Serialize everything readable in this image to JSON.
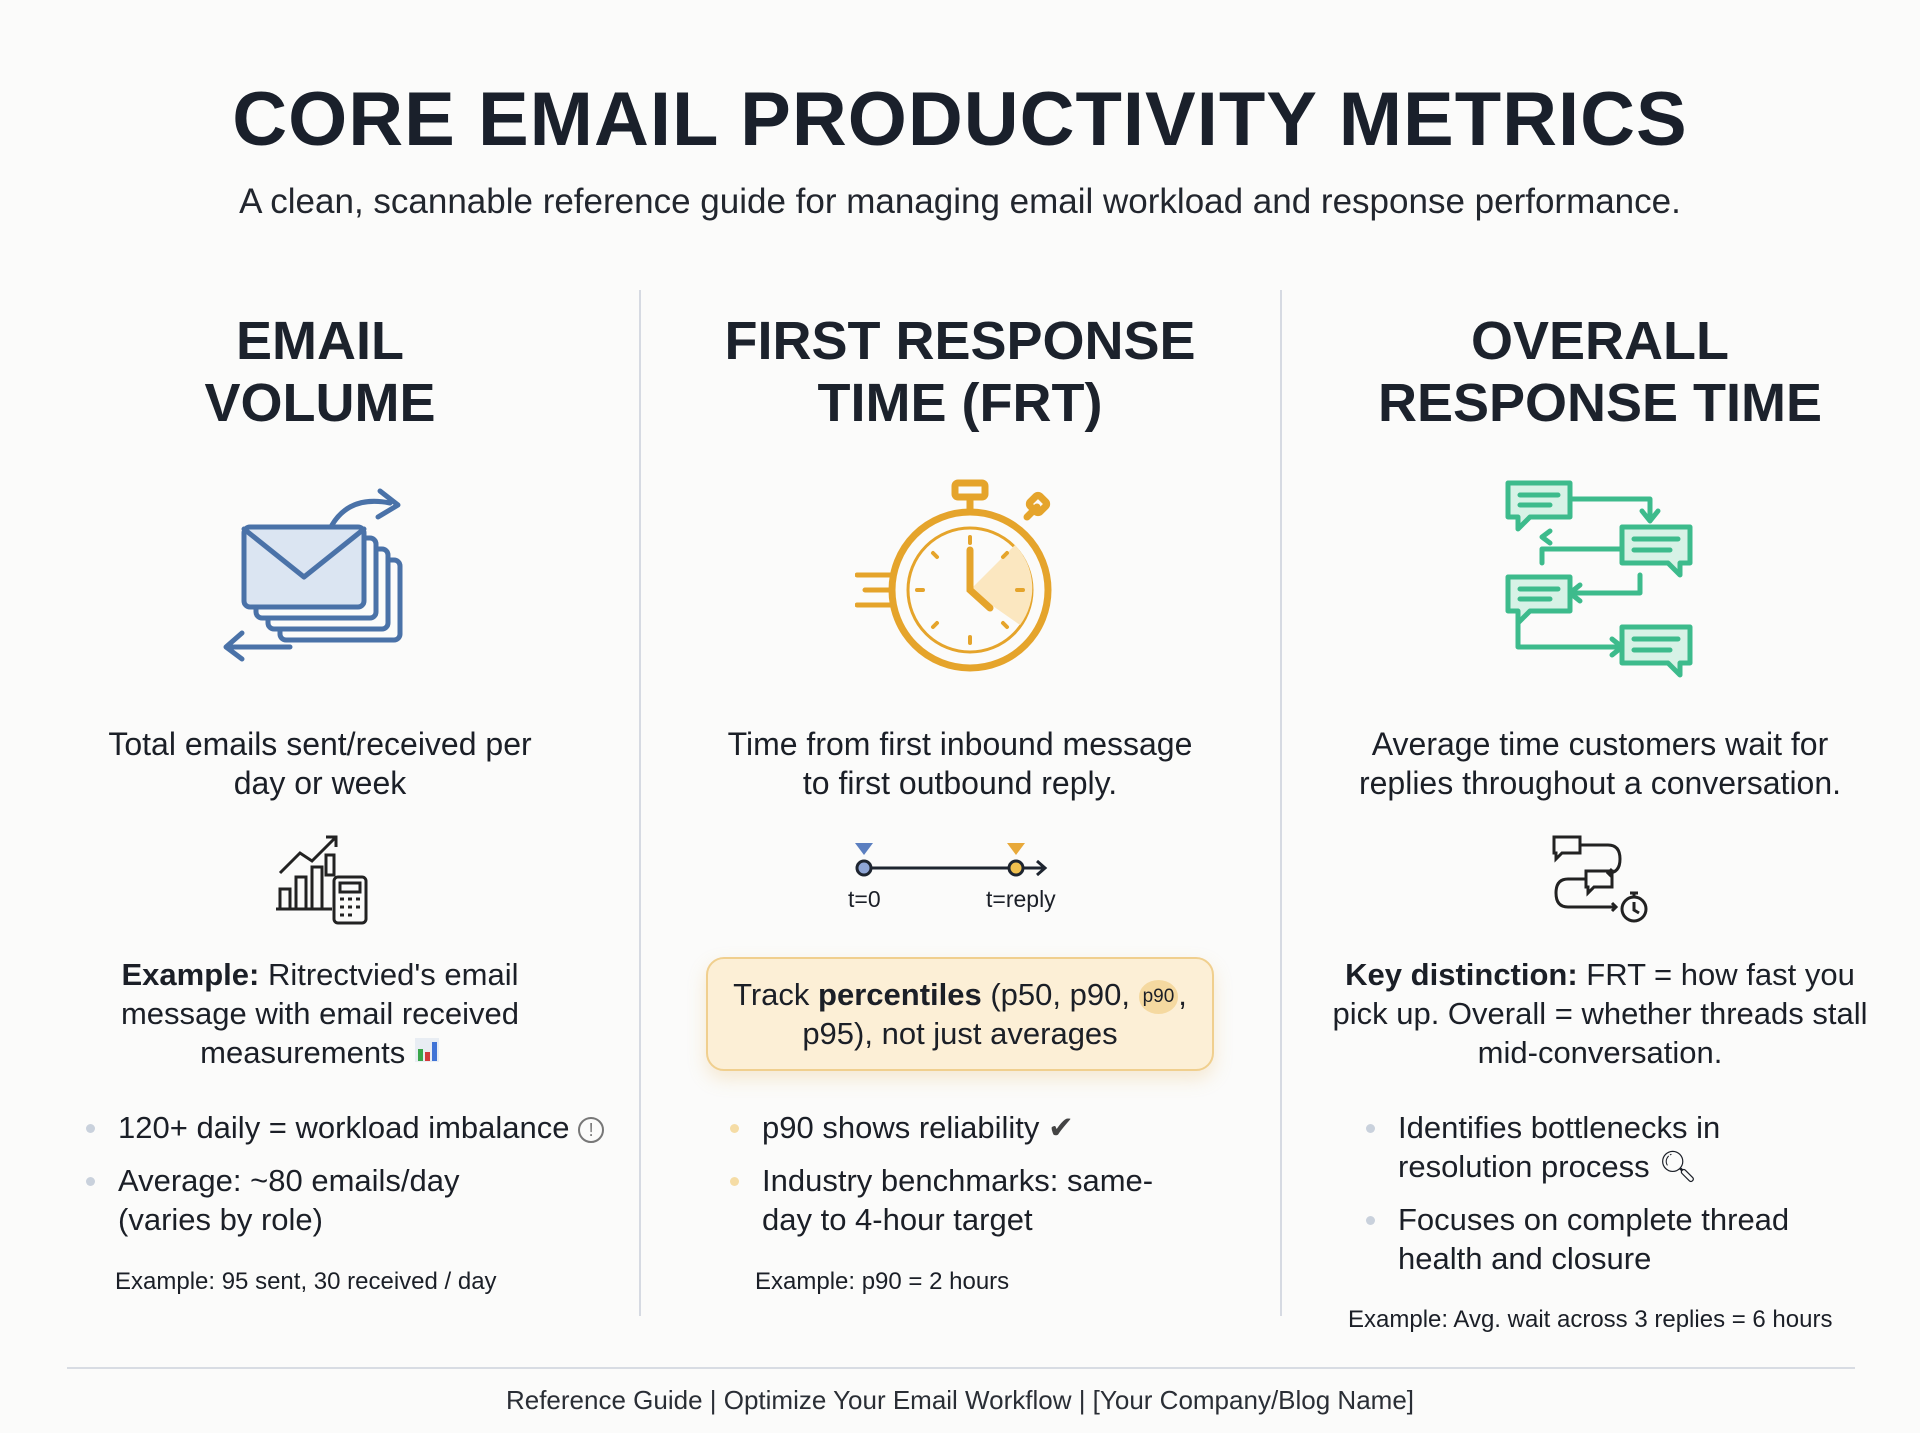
{
  "title": "CORE EMAIL PRODUCTIVITY METRICS",
  "subtitle": "A clean, scannable reference guide for managing email workload and response performance.",
  "colors": {
    "email_volume": "#4a72a8",
    "frt": "#e5a42b",
    "overall": "#3dbb8c",
    "callout_bg": "#fcefd6"
  },
  "columns": [
    {
      "heading_1": "EMAIL",
      "heading_2": "VOLUME",
      "icon": "email-stack-arrows-icon",
      "description": "Total emails sent/received per day or week",
      "small_icon": "chart-calculator-icon",
      "example_label": "Example:",
      "example_text": " Ritrectvied's email message with email received measurements",
      "example_icon": "bar-chart-emoji",
      "bullets": [
        "120+ daily = workload imbalance",
        "Average: ~80 emails/day (varies by role)"
      ],
      "bullet_icon": "exclamation-circle-icon",
      "footnote": "Example: 95 sent, 30 received / day"
    },
    {
      "heading_1": "FIRST RESPONSE",
      "heading_2": "TIME (FRT)",
      "icon": "stopwatch-icon",
      "description": "Time from first inbound message to first outbound reply.",
      "timeline": {
        "start": "t=0",
        "end": "t=reply"
      },
      "callout": {
        "pre": "Track ",
        "bold": "percentiles",
        "mid": " (p50, p90, ",
        "badge": "p90",
        "post": ", p95), not just averages"
      },
      "bullets": [
        "p90 shows reliability",
        "Industry benchmarks: same-day to 4-hour target"
      ],
      "bullet_icon": "checkmark-icon",
      "footnote": "Example: p90 = 2 hours"
    },
    {
      "heading_1": "OVERALL",
      "heading_2": "RESPONSE TIME",
      "icon": "conversation-flow-icon",
      "description": "Average time customers wait for replies throughout a conversation.",
      "small_icon": "chat-loop-timer-icon",
      "example_label": "Key distinction:",
      "example_text": " FRT = how fast you pick up. Overall = whether threads stall mid-conversation.",
      "bullets": [
        "Identifies bottlenecks in resolution process",
        "Focuses on complete thread health and closure"
      ],
      "bullet_icon": "magnifier-icon",
      "footnote": "Example: Avg. wait across 3 replies = 6 hours"
    }
  ],
  "footer": "Reference Guide | Optimize Your Email Workflow | [Your Company/Blog Name]"
}
